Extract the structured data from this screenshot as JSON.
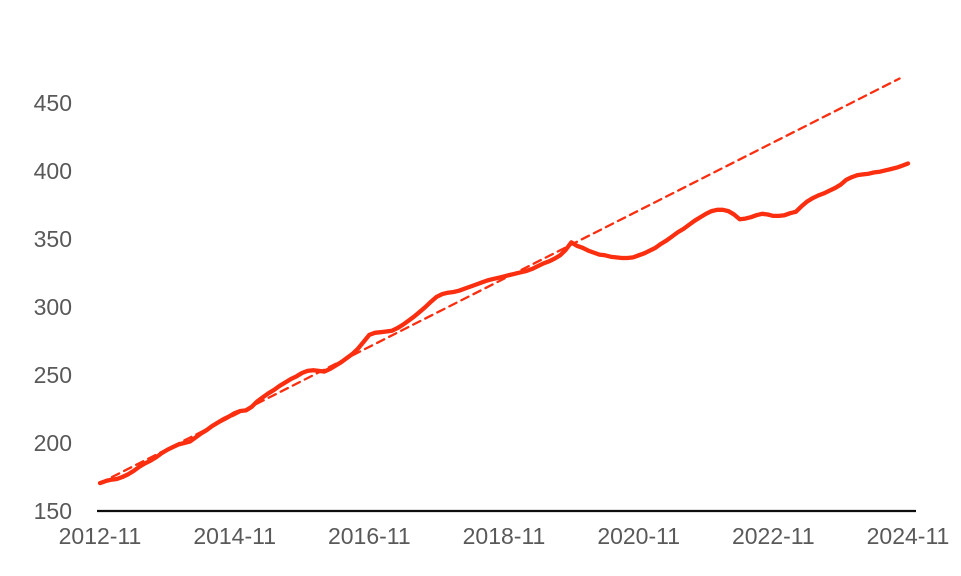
{
  "chart_data": {
    "type": "line",
    "title": "",
    "xlabel": "",
    "ylabel": "",
    "frequency": "monthly",
    "x_start": "2012-11",
    "x_end": "2024-11",
    "x_tick_labels": [
      "2012-11",
      "2014-11",
      "2016-11",
      "2018-11",
      "2020-11",
      "2022-11",
      "2024-11"
    ],
    "y_ticks": [
      150,
      200,
      250,
      300,
      350,
      400,
      450
    ],
    "ylim": [
      150,
      475
    ],
    "grid": false,
    "legend_position": "none",
    "colors": {
      "series_line": "#FB2E10",
      "trend_line": "#FB2E10",
      "axis_line": "#0d0d0d",
      "tick_text": "#595959",
      "background": "#ffffff"
    },
    "series": [
      {
        "name": "actual-values-monthly",
        "style": "solid",
        "values": [
          170.5,
          172,
          173,
          173.5,
          175,
          177,
          179.5,
          182.5,
          185,
          187,
          189.5,
          192.5,
          195,
          197,
          199,
          200,
          201,
          204,
          207,
          209.5,
          212.5,
          215,
          217.5,
          219.5,
          222,
          223.5,
          224,
          226.5,
          230.5,
          233.5,
          236.5,
          239,
          242,
          244.5,
          247,
          249,
          251.5,
          253,
          253.5,
          253,
          252.5,
          254.5,
          257,
          259.5,
          262.5,
          265.5,
          269.5,
          274.5,
          279.5,
          281,
          281.5,
          282,
          282.5,
          284.5,
          287,
          290,
          293,
          296.5,
          300,
          304,
          307.5,
          309.5,
          310.5,
          311,
          312,
          313.5,
          315,
          316.5,
          318,
          319.5,
          320.5,
          321.5,
          322.5,
          323.5,
          324.5,
          325.5,
          326.5,
          328,
          330,
          332,
          333.5,
          335.5,
          338,
          342,
          347.5,
          345,
          343.5,
          341.5,
          340,
          338.5,
          338,
          337,
          336.5,
          336,
          336,
          336.5,
          338,
          339.5,
          341.5,
          343.5,
          346.5,
          349,
          352,
          355,
          357.5,
          360.5,
          363.5,
          366,
          368.5,
          370.5,
          371.5,
          371.5,
          370.5,
          368,
          364.5,
          365,
          366,
          367.5,
          368.5,
          368,
          367,
          367,
          367.5,
          369,
          370,
          374,
          377.5,
          380,
          382,
          383.5,
          385.5,
          387.5,
          390,
          393.5,
          395.5,
          397,
          397.5,
          398,
          399,
          399.5,
          400.5,
          401.5,
          402.5,
          404,
          405.5
        ]
      },
      {
        "name": "linear-trend",
        "style": "dashed",
        "trend_start_month": 0,
        "trend_start_value": 170.5,
        "trend_end_month": 142.5,
        "trend_end_value": 468
      }
    ]
  }
}
